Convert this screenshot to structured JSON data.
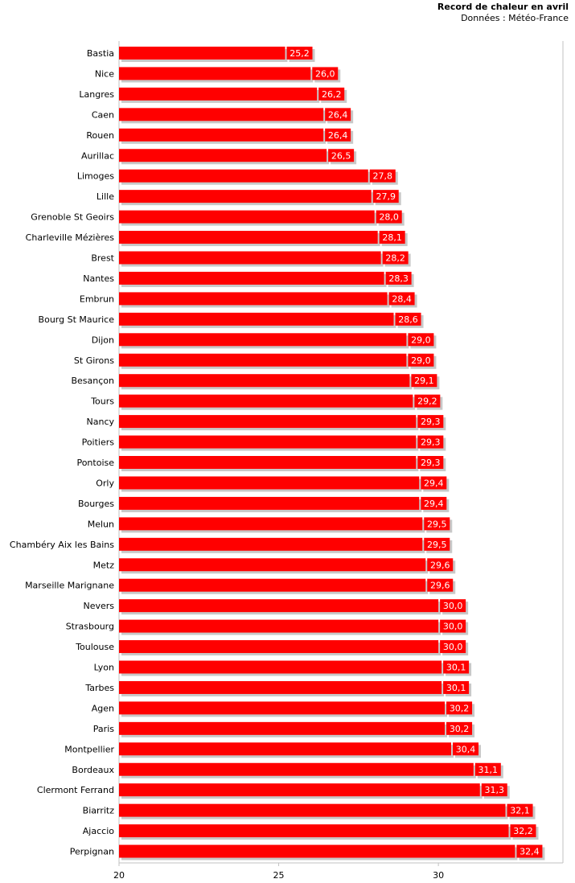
{
  "chart_data": {
    "type": "bar",
    "orientation": "horizontal",
    "title": "Record de chaleur en avril",
    "subtitle": "Données : Météo-France",
    "categories": [
      "Bastia",
      "Nice",
      "Langres",
      "Caen",
      "Rouen",
      "Aurillac",
      "Limoges",
      "Lille",
      "Grenoble St Geoirs",
      "Charleville Mézières",
      "Brest",
      "Nantes",
      "Embrun",
      "Bourg St Maurice",
      "Dijon",
      "St Girons",
      "Besançon",
      "Tours",
      "Nancy",
      "Poitiers",
      "Pontoise",
      "Orly",
      "Bourges",
      "Melun",
      "Chambéry Aix les Bains",
      "Metz",
      "Marseille Marignane",
      "Nevers",
      "Strasbourg",
      "Toulouse",
      "Lyon",
      "Tarbes",
      "Agen",
      "Paris",
      "Montpellier",
      "Bordeaux",
      "Clermont Ferrand",
      "Biarritz",
      "Ajaccio",
      "Perpignan"
    ],
    "values": [
      25.2,
      26.0,
      26.2,
      26.4,
      26.4,
      26.5,
      27.8,
      27.9,
      28.0,
      28.1,
      28.2,
      28.3,
      28.4,
      28.6,
      29.0,
      29.0,
      29.1,
      29.2,
      29.3,
      29.3,
      29.3,
      29.4,
      29.4,
      29.5,
      29.5,
      29.6,
      29.6,
      30.0,
      30.0,
      30.0,
      30.1,
      30.1,
      30.2,
      30.2,
      30.4,
      31.1,
      31.3,
      32.1,
      32.2,
      32.4
    ],
    "value_labels": [
      "25,2",
      "26,0",
      "26,2",
      "26,4",
      "26,4",
      "26,5",
      "27,8",
      "27,9",
      "28,0",
      "28,1",
      "28,2",
      "28,3",
      "28,4",
      "28,6",
      "29,0",
      "29,0",
      "29,1",
      "29,2",
      "29,3",
      "29,3",
      "29,3",
      "29,4",
      "29,4",
      "29,5",
      "29,5",
      "29,6",
      "29,6",
      "30,0",
      "30,0",
      "30,0",
      "30,1",
      "30,1",
      "30,2",
      "30,2",
      "30,4",
      "31,1",
      "31,3",
      "32,1",
      "32,2",
      "32,4"
    ],
    "xlim": [
      20,
      33.9
    ],
    "x_ticks": [
      20,
      25,
      30
    ],
    "x_tick_labels": [
      "20",
      "25",
      "30"
    ],
    "grid": false,
    "bar_color": "#ff0000",
    "shadow_color": "#c8c8c8",
    "label_bg_color": "#ff0000",
    "label_text_color": "#ffffff",
    "axis_color": "#c0c0c0"
  }
}
